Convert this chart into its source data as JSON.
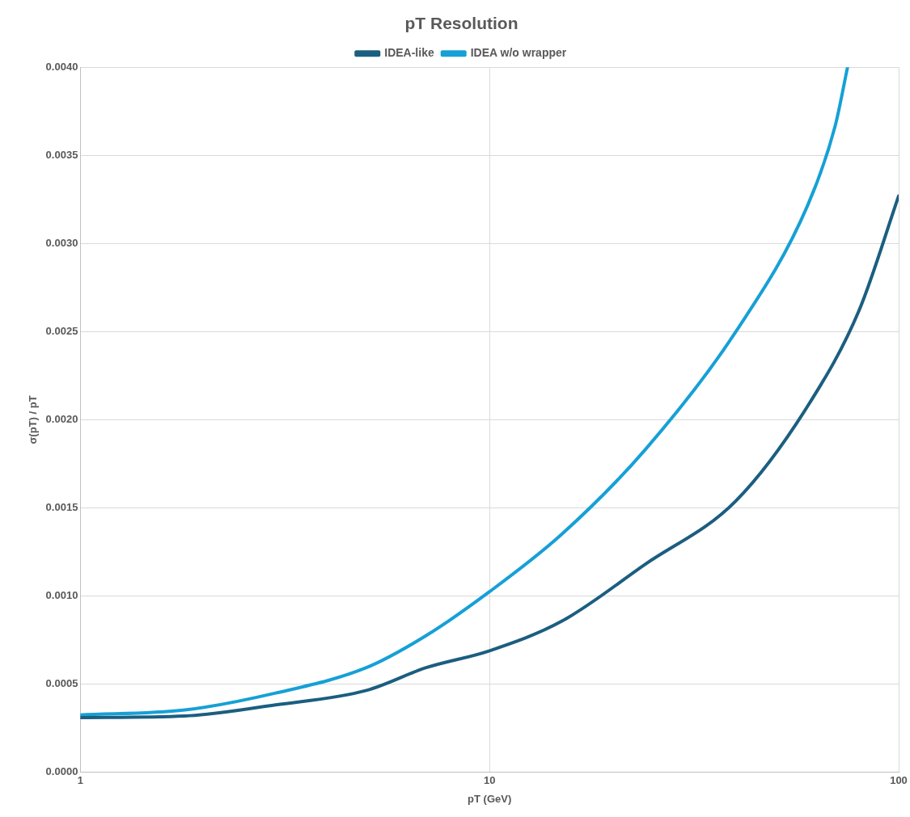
{
  "chart_data": {
    "type": "line",
    "title": "pT Resolution",
    "xlabel": "pT (GeV)",
    "ylabel": "σ(pT) / pT",
    "log": "x",
    "grid": true,
    "legend": "top",
    "marker": "none",
    "line_style": "solid",
    "xlim": [
      1,
      100
    ],
    "xticks": [
      1,
      10,
      100
    ],
    "ylim": [
      0,
      0.004
    ],
    "yticks": [
      {
        "value": 0,
        "label": "0.0000"
      },
      {
        "value": 0.0005,
        "label": "0.0005"
      },
      {
        "value": 0.001,
        "label": "0.0010"
      },
      {
        "value": 0.0015,
        "label": "0.0015"
      },
      {
        "value": 0.002,
        "label": "0.0020"
      },
      {
        "value": 0.0025,
        "label": "0.0025"
      },
      {
        "value": 0.003,
        "label": "0.0030"
      },
      {
        "value": 0.0035,
        "label": "0.0035"
      },
      {
        "value": 0.004,
        "label": "0.0040"
      }
    ],
    "series": [
      {
        "name": "IDEA-like",
        "color": "#1b5e80",
        "x": [
          1,
          1.8,
          3,
          5,
          7,
          10,
          15,
          24,
          40,
          60,
          80,
          100
        ],
        "values": [
          0.000311,
          0.00032,
          0.000383,
          0.000465,
          0.000594,
          0.00069,
          0.000857,
          0.00118,
          0.00154,
          0.00208,
          0.00262,
          0.00327
        ]
      },
      {
        "name": "IDEA w/o wrapper",
        "color": "#16a0d6",
        "x": [
          1,
          1.8,
          3,
          5,
          7,
          10,
          15,
          24,
          40,
          60,
          70,
          75
        ],
        "values": [
          0.000326,
          0.000354,
          0.00045,
          0.000594,
          0.000776,
          0.001025,
          0.00135,
          0.00183,
          0.0025,
          0.00322,
          0.00367,
          0.004
        ]
      }
    ]
  }
}
